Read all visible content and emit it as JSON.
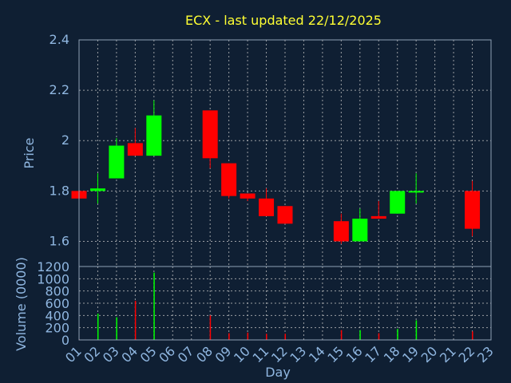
{
  "chart_data": [
    {
      "type": "candlestick",
      "title": "ECX - last updated 22/12/2025",
      "ylabel": "Price",
      "ylim": [
        1.5,
        2.4
      ],
      "yticks": [
        "1.6",
        "1.8",
        "2",
        "2.2",
        "2.4"
      ],
      "grid": true,
      "up_color": "#00ff00",
      "down_color": "#ff0000",
      "candles": [
        {
          "day": "01",
          "open": 1.8,
          "high": 1.8,
          "low": 1.76,
          "close": 1.77
        },
        {
          "day": "02",
          "open": 1.8,
          "high": 1.87,
          "low": 1.75,
          "close": 1.81
        },
        {
          "day": "03",
          "open": 1.85,
          "high": 2.01,
          "low": 1.85,
          "close": 1.98
        },
        {
          "day": "04",
          "open": 1.99,
          "high": 2.05,
          "low": 1.94,
          "close": 1.94
        },
        {
          "day": "05",
          "open": 1.94,
          "high": 2.16,
          "low": 1.94,
          "close": 2.1
        },
        {
          "day": "08",
          "open": 2.12,
          "high": 2.12,
          "low": 1.89,
          "close": 1.93
        },
        {
          "day": "09",
          "open": 1.91,
          "high": 1.91,
          "low": 1.77,
          "close": 1.78
        },
        {
          "day": "10",
          "open": 1.79,
          "high": 1.79,
          "low": 1.76,
          "close": 1.77
        },
        {
          "day": "11",
          "open": 1.77,
          "high": 1.81,
          "low": 1.7,
          "close": 1.7
        },
        {
          "day": "12",
          "open": 1.74,
          "high": 1.74,
          "low": 1.67,
          "close": 1.67
        },
        {
          "day": "15",
          "open": 1.68,
          "high": 1.71,
          "low": 1.59,
          "close": 1.6
        },
        {
          "day": "16",
          "open": 1.6,
          "high": 1.73,
          "low": 1.6,
          "close": 1.69
        },
        {
          "day": "17",
          "open": 1.7,
          "high": 1.76,
          "low": 1.69,
          "close": 1.69
        },
        {
          "day": "18",
          "open": 1.71,
          "high": 1.8,
          "low": 1.71,
          "close": 1.8
        },
        {
          "day": "19",
          "open": 1.8,
          "high": 1.87,
          "low": 1.75,
          "close": 1.8
        },
        {
          "day": "22",
          "open": 1.8,
          "high": 1.84,
          "low": 1.62,
          "close": 1.65
        }
      ]
    },
    {
      "type": "bar",
      "ylabel": "Volume (0000)",
      "xlabel": "Day",
      "ylim": [
        0,
        1200
      ],
      "yticks": [
        "0",
        "200",
        "400",
        "600",
        "800",
        "1000",
        "1200"
      ],
      "categories": [
        "01",
        "02",
        "03",
        "04",
        "05",
        "06",
        "07",
        "08",
        "09",
        "10",
        "11",
        "12",
        "13",
        "14",
        "15",
        "16",
        "17",
        "18",
        "19",
        "20",
        "21",
        "22",
        "23"
      ],
      "bars": [
        {
          "day": "01",
          "value": 10,
          "color": "#ff0000"
        },
        {
          "day": "02",
          "value": 430,
          "color": "#00ff00"
        },
        {
          "day": "03",
          "value": 370,
          "color": "#00ff00"
        },
        {
          "day": "04",
          "value": 640,
          "color": "#ff0000"
        },
        {
          "day": "05",
          "value": 1100,
          "color": "#00ff00"
        },
        {
          "day": "08",
          "value": 400,
          "color": "#ff0000"
        },
        {
          "day": "09",
          "value": 110,
          "color": "#ff0000"
        },
        {
          "day": "10",
          "value": 120,
          "color": "#ff0000"
        },
        {
          "day": "11",
          "value": 100,
          "color": "#ff0000"
        },
        {
          "day": "12",
          "value": 100,
          "color": "#ff0000"
        },
        {
          "day": "15",
          "value": 160,
          "color": "#ff0000"
        },
        {
          "day": "16",
          "value": 160,
          "color": "#00ff00"
        },
        {
          "day": "17",
          "value": 110,
          "color": "#ff0000"
        },
        {
          "day": "18",
          "value": 180,
          "color": "#00ff00"
        },
        {
          "day": "19",
          "value": 320,
          "color": "#00ff00"
        },
        {
          "day": "22",
          "value": 140,
          "color": "#ff0000"
        }
      ]
    }
  ]
}
